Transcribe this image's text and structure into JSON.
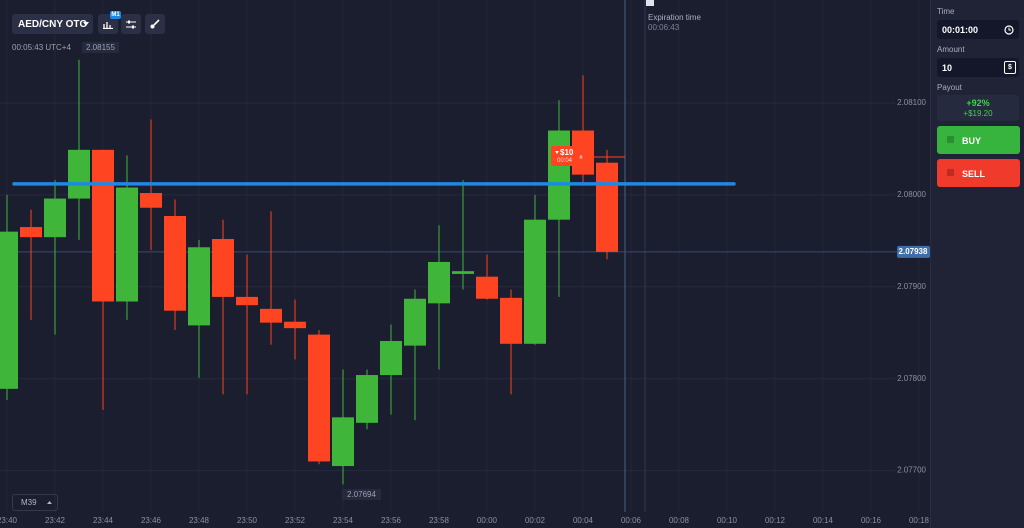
{
  "toolbar": {
    "pair": "AED/CNY OTC",
    "timeframe_badge": "M1",
    "clock": "00:05:43 UTC+4",
    "high_label": "2.08155"
  },
  "expiration": {
    "label": "Expiration time",
    "time": "00:06:43"
  },
  "zoom": {
    "label": "M39"
  },
  "low_label": "2.07694",
  "trade": {
    "amount": "$10",
    "time": "00:04"
  },
  "chart_data": {
    "type": "candlestick",
    "categories": [
      "23:40",
      null,
      "23:42",
      null,
      "23:44",
      null,
      "23:46",
      null,
      "23:48",
      null,
      "23:50",
      null,
      "23:52",
      null,
      "23:54",
      null,
      "23:56",
      null,
      "23:58",
      null,
      "00:00",
      null,
      "00:02",
      null,
      "00:04",
      null,
      "00:06",
      null,
      "00:08",
      null,
      "00:10",
      null,
      "00:12",
      null,
      "00:14",
      null,
      "00:16",
      null,
      "00:18"
    ],
    "open": [
      2.07789,
      2.07965,
      2.07954,
      2.07996,
      2.08049,
      2.07884,
      2.08002,
      2.07977,
      2.07858,
      2.07952,
      2.07889,
      2.07876,
      2.07862,
      2.07848,
      2.07705,
      2.07752,
      2.07804,
      2.07836,
      2.07882,
      2.07914,
      2.07911,
      2.07888,
      2.07838,
      2.07973,
      2.0807,
      2.08035,
      null,
      null,
      null,
      null,
      null,
      null,
      null,
      null,
      null,
      null,
      null,
      null,
      null
    ],
    "high": [
      2.08,
      2.07984,
      2.08016,
      2.08147,
      2.08049,
      2.08043,
      2.08082,
      2.07995,
      2.07951,
      2.07973,
      2.07935,
      2.07982,
      2.07886,
      2.07853,
      2.0781,
      2.0781,
      2.07859,
      2.07897,
      2.07967,
      2.08016,
      2.07935,
      2.07897,
      2.08,
      2.08103,
      2.0813,
      2.08049,
      null,
      null,
      null,
      null,
      null,
      null,
      null,
      null,
      null,
      null,
      null,
      null,
      null
    ],
    "low": [
      2.07777,
      2.07864,
      2.07848,
      2.07951,
      2.07766,
      2.07864,
      2.0794,
      2.07853,
      2.07801,
      2.07783,
      2.07783,
      2.07837,
      2.07821,
      2.07707,
      2.07685,
      2.07745,
      2.07761,
      2.07755,
      2.0781,
      2.07897,
      2.07886,
      2.07783,
      2.07837,
      2.07889,
      2.08011,
      2.0793,
      null,
      null,
      null,
      null,
      null,
      null,
      null,
      null,
      null,
      null,
      null,
      null,
      null
    ],
    "close": [
      2.0796,
      2.07954,
      2.07996,
      2.08049,
      2.07884,
      2.08008,
      2.07986,
      2.07874,
      2.07943,
      2.07889,
      2.0788,
      2.07861,
      2.07855,
      2.0771,
      2.07758,
      2.07804,
      2.07841,
      2.07887,
      2.07927,
      2.07917,
      2.07887,
      2.07838,
      2.07973,
      2.0807,
      2.08022,
      2.07938,
      null,
      null,
      null,
      null,
      null,
      null,
      null,
      null,
      null,
      null,
      null,
      null,
      null
    ],
    "up_color": "#3fb63a",
    "down_color": "#ff4422",
    "ylim": [
      2.07655,
      2.08212
    ],
    "yticks": [
      {
        "value": 2.077,
        "label": "2.07700"
      },
      {
        "value": 2.078,
        "label": "2.07800"
      },
      {
        "value": 2.079,
        "label": "2.07900"
      },
      {
        "value": 2.08,
        "label": "2.08000"
      },
      {
        "value": 2.081,
        "label": "2.08100"
      }
    ],
    "grid": true,
    "level": 2.08012,
    "level_color": "#1e88e5",
    "current_price": {
      "value": 2.07938,
      "label": "2.07938"
    }
  },
  "panel": {
    "time_label": "Time",
    "time_value": "00:01:00",
    "amount_label": "Amount",
    "amount_value": "10",
    "amount_unit": "$",
    "payout_label": "Payout",
    "payout_percent": "+92%",
    "payout_amount": "+$19.20",
    "buy": "BUY",
    "sell": "SELL"
  }
}
